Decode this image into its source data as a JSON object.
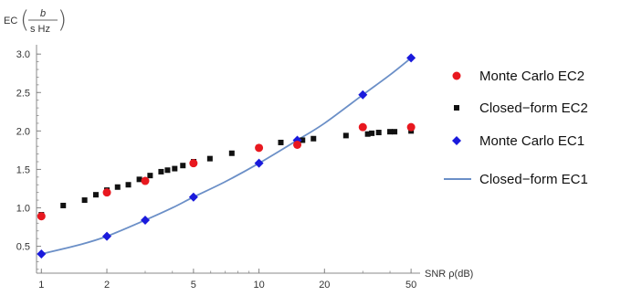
{
  "chart_data": {
    "type": "scatter",
    "xscale": "log",
    "xlim": [
      0.95,
      55
    ],
    "ylim": [
      0.15,
      3.05
    ],
    "xticks_major": [
      1,
      2,
      5,
      10,
      20,
      50
    ],
    "xtick_labels": [
      "1",
      "2",
      "5",
      "10",
      "20",
      "50"
    ],
    "yticks_major": [
      0.5,
      1.0,
      1.5,
      2.0,
      2.5,
      3.0
    ],
    "ytick_labels": [
      "0.5",
      "1.0",
      "1.5",
      "2.0",
      "2.5",
      "3.0"
    ],
    "xlabel": "SNR ρ(dB)",
    "ylabel": {
      "prefix": "EC",
      "num": "b",
      "den": "s Hz"
    },
    "grid": false,
    "legend_position": "right",
    "series": [
      {
        "name": "Monte Carlo EC2",
        "marker": "circle",
        "color": "#e8181f",
        "points": [
          [
            1,
            0.89
          ],
          [
            2,
            1.2
          ],
          [
            3,
            1.35
          ],
          [
            5,
            1.58
          ],
          [
            10,
            1.78
          ],
          [
            15,
            1.82
          ],
          [
            30,
            2.05
          ],
          [
            50,
            2.05
          ]
        ]
      },
      {
        "name": "Closed−form EC2",
        "marker": "square",
        "color": "#111111",
        "points": [
          [
            1,
            0.91
          ],
          [
            1.26,
            1.03
          ],
          [
            1.58,
            1.1
          ],
          [
            1.78,
            1.17
          ],
          [
            2,
            1.23
          ],
          [
            2.24,
            1.27
          ],
          [
            2.51,
            1.3
          ],
          [
            2.82,
            1.37
          ],
          [
            3.16,
            1.42
          ],
          [
            3.55,
            1.47
          ],
          [
            3.8,
            1.49
          ],
          [
            4.1,
            1.51
          ],
          [
            4.47,
            1.55
          ],
          [
            5.01,
            1.6
          ],
          [
            5.95,
            1.64
          ],
          [
            7.5,
            1.71
          ],
          [
            10,
            1.78
          ],
          [
            12.6,
            1.85
          ],
          [
            15.85,
            1.88
          ],
          [
            17.8,
            1.9
          ],
          [
            25.1,
            1.94
          ],
          [
            31.6,
            1.96
          ],
          [
            33,
            1.97
          ],
          [
            35.5,
            1.98
          ],
          [
            40,
            1.99
          ],
          [
            42,
            1.99
          ],
          [
            50,
            2.0
          ]
        ]
      },
      {
        "name": "Monte Carlo EC1",
        "marker": "diamond",
        "color": "#1a1adc",
        "points": [
          [
            1,
            0.4
          ],
          [
            2,
            0.63
          ],
          [
            3,
            0.84
          ],
          [
            5,
            1.14
          ],
          [
            10,
            1.58
          ],
          [
            15,
            1.88
          ],
          [
            30,
            2.47
          ],
          [
            50,
            2.95
          ]
        ]
      },
      {
        "name": "Closed−form EC1",
        "marker": "line",
        "color": "#6b8fc7",
        "points": [
          [
            1,
            0.4
          ],
          [
            1.5,
            0.52
          ],
          [
            2,
            0.63
          ],
          [
            3,
            0.84
          ],
          [
            4,
            1.0
          ],
          [
            5,
            1.14
          ],
          [
            7,
            1.34
          ],
          [
            10,
            1.58
          ],
          [
            15,
            1.88
          ],
          [
            20,
            2.1
          ],
          [
            30,
            2.47
          ],
          [
            40,
            2.73
          ],
          [
            50,
            2.95
          ]
        ]
      }
    ]
  }
}
